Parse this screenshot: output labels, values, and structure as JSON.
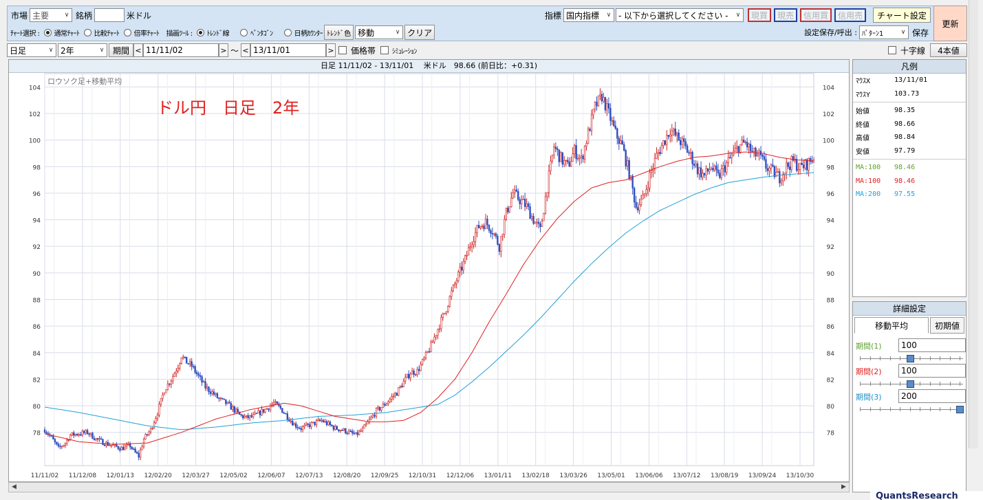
{
  "toolbar": {
    "market_label": "市場",
    "market_value": "主要",
    "symbol_label": "銘柄",
    "symbol_value": "",
    "symbol_name": "米ドル",
    "indicator_label": "指標",
    "indicator_value": "国内指標",
    "indicator_select": "- 以下から選択してください -",
    "buy_spot": "現買",
    "sell_spot": "現売",
    "buy_margin": "信用買",
    "sell_margin": "信用売",
    "chart_settings": "チャート設定",
    "refresh": "更新",
    "chart_select_label": "ﾁｬｰﾄ選択 :",
    "chart_types": [
      "通常ﾁｬｰﾄ",
      "比較ﾁｬｰﾄ",
      "倍率ﾁｬｰﾄ"
    ],
    "chart_type_selected": 0,
    "draw_tool_label": "描画ﾂｰﾙ :",
    "draw_tools": [
      "ﾄﾚﾝﾄﾞ線",
      "ﾍﾟﾝﾀｺﾞﾝ",
      "日柄ｶｳﾝﾀｰ"
    ],
    "draw_tool_selected": 0,
    "trend_color": "ﾄﾚﾝﾄﾞ色",
    "move_value": "移動",
    "clear": "クリア",
    "settings_save_label": "設定保存/呼出 :",
    "pattern_value": "ﾊﾟﾀｰﾝ1",
    "save": "保存"
  },
  "period_row": {
    "interval": "日足",
    "span": "2年",
    "period_btn": "期間",
    "from_date": "11/11/02",
    "tilde": "～",
    "to_date": "13/11/01",
    "price_band": "価格帯",
    "simulation": "ｼﾐｭﾚｰｼｮﾝ",
    "crosshair": "十字線",
    "four_values": "4本値"
  },
  "chart": {
    "header": "日足 11/11/02 - 13/11/01　 米ドル　98.66 (前日比：+0.31)",
    "subtitle": "ロウソク足+移動平均",
    "annotation": "ドル円　日足　2年",
    "colors": {
      "up": "#d02020",
      "down": "#3050c0",
      "ma100": "#e02020",
      "ma200": "#20a0d8",
      "annotation": "#e02020",
      "grid": "#d8dce8"
    }
  },
  "chart_data": {
    "type": "candlestick",
    "ylim": [
      75.5,
      105
    ],
    "yticks": [
      78,
      80,
      82,
      84,
      86,
      88,
      90,
      92,
      94,
      96,
      98,
      100,
      102,
      104
    ],
    "x_dates": [
      "11/11/02",
      "11/12/08",
      "12/01/13",
      "12/02/20",
      "12/03/27",
      "12/05/02",
      "12/06/07",
      "12/07/13",
      "12/08/20",
      "12/09/25",
      "12/10/31",
      "12/12/06",
      "13/01/11",
      "13/02/18",
      "13/03/26",
      "13/05/01",
      "13/06/06",
      "13/07/12",
      "13/08/19",
      "13/09/24",
      "13/10/30"
    ],
    "price_path": [
      [
        0,
        78.2
      ],
      [
        4,
        77.6
      ],
      [
        8,
        76.8
      ],
      [
        12,
        77.2
      ],
      [
        15,
        77.8
      ],
      [
        20,
        77.9
      ],
      [
        25,
        78.0
      ],
      [
        30,
        77.5
      ],
      [
        35,
        77.2
      ],
      [
        40,
        77.0
      ],
      [
        45,
        76.8
      ],
      [
        50,
        77.0
      ],
      [
        52,
        76.6
      ],
      [
        55,
        76.2
      ],
      [
        58,
        77.5
      ],
      [
        62,
        78.2
      ],
      [
        66,
        79.5
      ],
      [
        70,
        81.2
      ],
      [
        74,
        82.0
      ],
      [
        78,
        83.0
      ],
      [
        80,
        83.8
      ],
      [
        82,
        83.4
      ],
      [
        86,
        83.0
      ],
      [
        90,
        82.2
      ],
      [
        94,
        81.4
      ],
      [
        98,
        81.0
      ],
      [
        102,
        80.5
      ],
      [
        106,
        80.2
      ],
      [
        110,
        79.8
      ],
      [
        114,
        79.3
      ],
      [
        118,
        79.1
      ],
      [
        122,
        79.2
      ],
      [
        126,
        79.5
      ],
      [
        130,
        79.8
      ],
      [
        134,
        80.2
      ],
      [
        138,
        79.8
      ],
      [
        142,
        79.2
      ],
      [
        146,
        78.6
      ],
      [
        150,
        78.3
      ],
      [
        154,
        78.5
      ],
      [
        158,
        78.7
      ],
      [
        162,
        78.9
      ],
      [
        166,
        78.6
      ],
      [
        170,
        78.3
      ],
      [
        174,
        78.2
      ],
      [
        178,
        78.0
      ],
      [
        182,
        77.8
      ],
      [
        186,
        78.2
      ],
      [
        190,
        78.9
      ],
      [
        194,
        79.6
      ],
      [
        198,
        80.0
      ],
      [
        202,
        80.5
      ],
      [
        206,
        81.0
      ],
      [
        210,
        81.8
      ],
      [
        214,
        82.5
      ],
      [
        218,
        82.6
      ],
      [
        222,
        83.5
      ],
      [
        226,
        84.5
      ],
      [
        230,
        85.8
      ],
      [
        234,
        87.0
      ],
      [
        238,
        88.5
      ],
      [
        242,
        89.8
      ],
      [
        246,
        91.0
      ],
      [
        250,
        92.5
      ],
      [
        254,
        93.5
      ],
      [
        258,
        93.8
      ],
      [
        262,
        93.2
      ],
      [
        266,
        92.0
      ],
      [
        270,
        94.5
      ],
      [
        274,
        96.0
      ],
      [
        278,
        95.5
      ],
      [
        282,
        95.0
      ],
      [
        286,
        94.0
      ],
      [
        290,
        93.2
      ],
      [
        294,
        96.5
      ],
      [
        298,
        99.5
      ],
      [
        302,
        98.6
      ],
      [
        306,
        98.0
      ],
      [
        310,
        99.2
      ],
      [
        314,
        98.5
      ],
      [
        318,
        100.5
      ],
      [
        322,
        102.5
      ],
      [
        326,
        103.3
      ],
      [
        330,
        102.0
      ],
      [
        334,
        100.5
      ],
      [
        338,
        99.5
      ],
      [
        342,
        97.5
      ],
      [
        346,
        95.0
      ],
      [
        350,
        95.5
      ],
      [
        354,
        97.3
      ],
      [
        358,
        98.8
      ],
      [
        362,
        99.8
      ],
      [
        366,
        100.8
      ],
      [
        370,
        100.2
      ],
      [
        374,
        99.6
      ],
      [
        378,
        98.8
      ],
      [
        382,
        97.8
      ],
      [
        386,
        97.3
      ],
      [
        390,
        98.0
      ],
      [
        394,
        97.2
      ],
      [
        398,
        98.0
      ],
      [
        402,
        98.8
      ],
      [
        406,
        99.5
      ],
      [
        410,
        99.8
      ],
      [
        414,
        99.0
      ],
      [
        418,
        98.8
      ],
      [
        422,
        98.0
      ],
      [
        426,
        97.6
      ],
      [
        430,
        97.2
      ],
      [
        434,
        98.0
      ],
      [
        438,
        98.4
      ],
      [
        442,
        97.9
      ],
      [
        446,
        98.2
      ],
      [
        450,
        98.66
      ]
    ],
    "ma100_path": [
      [
        0,
        77.9
      ],
      [
        20,
        77.3
      ],
      [
        40,
        77.1
      ],
      [
        60,
        77.2
      ],
      [
        80,
        78.0
      ],
      [
        100,
        79.0
      ],
      [
        120,
        79.7
      ],
      [
        140,
        80.2
      ],
      [
        150,
        80.0
      ],
      [
        160,
        79.6
      ],
      [
        170,
        79.2
      ],
      [
        180,
        79.0
      ],
      [
        190,
        78.8
      ],
      [
        200,
        78.8
      ],
      [
        210,
        78.9
      ],
      [
        220,
        79.5
      ],
      [
        230,
        80.6
      ],
      [
        240,
        82.0
      ],
      [
        250,
        84.0
      ],
      [
        260,
        86.3
      ],
      [
        270,
        88.4
      ],
      [
        280,
        90.6
      ],
      [
        290,
        92.5
      ],
      [
        300,
        94.1
      ],
      [
        310,
        95.4
      ],
      [
        320,
        96.4
      ],
      [
        330,
        96.8
      ],
      [
        340,
        97.0
      ],
      [
        350,
        97.5
      ],
      [
        360,
        98.0
      ],
      [
        370,
        98.4
      ],
      [
        380,
        98.7
      ],
      [
        390,
        98.8
      ],
      [
        400,
        99.0
      ],
      [
        410,
        99.1
      ],
      [
        420,
        99.0
      ],
      [
        430,
        98.7
      ],
      [
        440,
        98.5
      ],
      [
        450,
        98.46
      ]
    ],
    "ma200_path": [
      [
        0,
        79.9
      ],
      [
        20,
        79.5
      ],
      [
        40,
        79.0
      ],
      [
        60,
        78.5
      ],
      [
        80,
        78.2
      ],
      [
        100,
        78.4
      ],
      [
        120,
        78.7
      ],
      [
        140,
        78.9
      ],
      [
        160,
        79.2
      ],
      [
        180,
        79.3
      ],
      [
        200,
        79.5
      ],
      [
        210,
        79.7
      ],
      [
        220,
        79.9
      ],
      [
        230,
        80.1
      ],
      [
        240,
        80.8
      ],
      [
        250,
        81.8
      ],
      [
        260,
        82.9
      ],
      [
        270,
        84.1
      ],
      [
        280,
        85.3
      ],
      [
        290,
        86.6
      ],
      [
        300,
        88.0
      ],
      [
        310,
        89.4
      ],
      [
        320,
        90.7
      ],
      [
        330,
        91.9
      ],
      [
        340,
        93.0
      ],
      [
        350,
        93.9
      ],
      [
        360,
        94.7
      ],
      [
        370,
        95.3
      ],
      [
        380,
        95.9
      ],
      [
        390,
        96.4
      ],
      [
        400,
        96.8
      ],
      [
        410,
        97.0
      ],
      [
        420,
        97.2
      ],
      [
        430,
        97.35
      ],
      [
        440,
        97.45
      ],
      [
        450,
        97.55
      ]
    ]
  },
  "legend": {
    "title": "凡例",
    "rows": [
      {
        "k": "ﾏｳｽX",
        "v": "13/11/01"
      },
      {
        "k": "ﾏｳｽY",
        "v": "103.73"
      },
      {
        "k": "始値",
        "v": "98.35"
      },
      {
        "k": "終値",
        "v": "98.66"
      },
      {
        "k": "高値",
        "v": "98.84"
      },
      {
        "k": "安値",
        "v": "97.79"
      }
    ],
    "ma": [
      {
        "k": "MA:100",
        "v": "98.46",
        "color": "#60a030"
      },
      {
        "k": "MA:100",
        "v": "98.46",
        "color": "#e02020"
      },
      {
        "k": "MA:200",
        "v": "97.55",
        "color": "#20a0d8"
      }
    ]
  },
  "detail": {
    "title": "詳細設定",
    "tab_ma": "移動平均",
    "tab_init": "初期値",
    "periods": [
      {
        "label": "期間(1)",
        "value": "100",
        "color": "#60a030",
        "level": 0.5
      },
      {
        "label": "期間(2)",
        "value": "100",
        "color": "#e02020",
        "level": 0.5
      },
      {
        "label": "期間(3)",
        "value": "200",
        "color": "#2090c8",
        "level": 1.0
      }
    ]
  },
  "corner": "QuantsResearch"
}
